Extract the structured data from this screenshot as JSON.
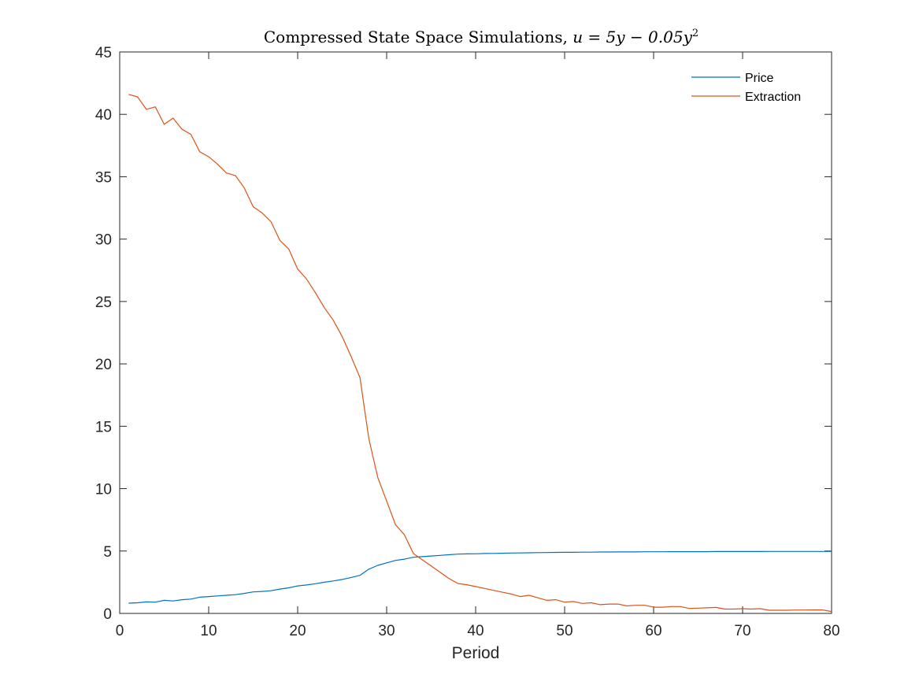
{
  "chart_data": {
    "type": "line",
    "title": "Compressed State Space Simulations, u = 5y − 0.05y²",
    "title_parts": {
      "main": "Compressed State Space Simulations, ",
      "formula": "u = 5y − 0.05y",
      "superscript": "2"
    },
    "xlabel": "Period",
    "ylabel": "",
    "xlim": [
      0,
      80
    ],
    "ylim": [
      0,
      45
    ],
    "xticks": [
      0,
      10,
      20,
      30,
      40,
      50,
      60,
      70,
      80
    ],
    "yticks": [
      0,
      5,
      10,
      15,
      20,
      25,
      30,
      35,
      40,
      45
    ],
    "grid": false,
    "legend_position": "top-right",
    "x": [
      1,
      2,
      3,
      4,
      5,
      6,
      7,
      8,
      9,
      10,
      11,
      12,
      13,
      14,
      15,
      16,
      17,
      18,
      19,
      20,
      21,
      22,
      23,
      24,
      25,
      26,
      27,
      28,
      29,
      30,
      31,
      32,
      33,
      34,
      35,
      36,
      37,
      38,
      39,
      40,
      41,
      42,
      43,
      44,
      45,
      46,
      47,
      48,
      49,
      50,
      51,
      52,
      53,
      54,
      55,
      56,
      57,
      58,
      59,
      60,
      61,
      62,
      63,
      64,
      65,
      66,
      67,
      68,
      69,
      70,
      71,
      72,
      73,
      74,
      75,
      76,
      77,
      78,
      79,
      80
    ],
    "series": [
      {
        "name": "Price",
        "color": "#0072BD",
        "values": [
          0.82,
          0.85,
          0.92,
          0.9,
          1.05,
          1.0,
          1.1,
          1.15,
          1.3,
          1.35,
          1.4,
          1.45,
          1.5,
          1.6,
          1.72,
          1.76,
          1.82,
          1.95,
          2.05,
          2.2,
          2.28,
          2.38,
          2.5,
          2.6,
          2.72,
          2.88,
          3.05,
          3.55,
          3.85,
          4.05,
          4.25,
          4.35,
          4.5,
          4.55,
          4.6,
          4.65,
          4.7,
          4.75,
          4.77,
          4.78,
          4.8,
          4.81,
          4.82,
          4.84,
          4.85,
          4.86,
          4.87,
          4.88,
          4.89,
          4.9,
          4.9,
          4.91,
          4.91,
          4.92,
          4.92,
          4.93,
          4.93,
          4.93,
          4.94,
          4.94,
          4.94,
          4.95,
          4.95,
          4.95,
          4.95,
          4.95,
          4.96,
          4.96,
          4.96,
          4.96,
          4.96,
          4.96,
          4.97,
          4.97,
          4.97,
          4.97,
          4.97,
          4.97,
          4.97,
          4.97
        ]
      },
      {
        "name": "Extraction",
        "color": "#D95319",
        "values": [
          41.6,
          41.4,
          40.4,
          40.6,
          39.2,
          39.7,
          38.8,
          38.4,
          37.0,
          36.6,
          36.0,
          35.3,
          35.1,
          34.1,
          32.6,
          32.1,
          31.4,
          29.9,
          29.2,
          27.6,
          26.8,
          25.7,
          24.5,
          23.5,
          22.2,
          20.6,
          18.9,
          14.0,
          10.9,
          9.0,
          7.1,
          6.3,
          4.8,
          4.3,
          3.8,
          3.3,
          2.8,
          2.4,
          2.3,
          2.15,
          2.0,
          1.85,
          1.7,
          1.55,
          1.35,
          1.45,
          1.25,
          1.05,
          1.1,
          0.9,
          0.95,
          0.8,
          0.85,
          0.7,
          0.75,
          0.75,
          0.6,
          0.65,
          0.65,
          0.5,
          0.5,
          0.55,
          0.55,
          0.4,
          0.42,
          0.45,
          0.48,
          0.35,
          0.35,
          0.38,
          0.35,
          0.38,
          0.25,
          0.25,
          0.25,
          0.27,
          0.27,
          0.28,
          0.28,
          0.15
        ]
      }
    ]
  }
}
